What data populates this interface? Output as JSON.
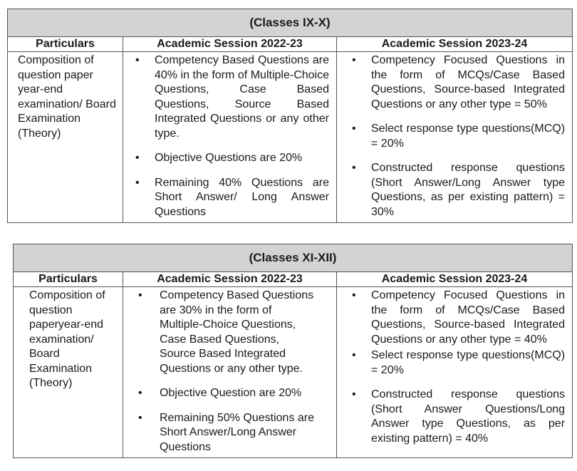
{
  "tables": [
    {
      "title": "(Classes IX-X)",
      "headers": [
        "Particulars",
        "Academic Session 2022-23",
        "Academic Session 2023-24"
      ],
      "particulars": "Composition of question paper year-end examination/ Board Examination (Theory)",
      "session_2022_23": [
        "Competency Based Questions are 40% in the form of Multiple-Choice Questions, Case Based Questions, Source Based Integrated Questions or any other type.",
        "Objective Questions are 20%",
        "Remaining 40% Questions are Short Answer/ Long Answer Questions"
      ],
      "session_2023_24": [
        "Competency Focused Questions in the form of MCQs/Case Based Questions, Source-based Integrated Questions or any other type = 50%",
        "Select response type questions(MCQ) = 20%",
        "Constructed response questions (Short Answer/Long Answer type Questions, as per existing pattern) = 30%"
      ]
    },
    {
      "title": "(Classes XI-XII)",
      "headers": [
        "Particulars",
        "Academic Session 2022-23",
        "Academic Session 2023-24"
      ],
      "particulars": "Composition of question paperyear-end examination/ Board Examination (Theory)",
      "session_2022_23": [
        "Competency Based Questions are 30% in the form of Multiple-Choice Questions, Case Based Questions, Source Based Integrated Questions or any other type.",
        "Objective Question are 20%",
        "Remaining 50% Questions are Short Answer/Long Answer Questions"
      ],
      "session_2023_24": [
        "Competency Focused Questions in the form of MCQs/Case Based Questions, Source-based Integrated Questions or any other type = 40%",
        "Select response type questions(MCQ) = 20%",
        "Constructed response questions (Short Answer Questions/Long Answer type Questions, as per existing pattern) = 40%"
      ]
    }
  ],
  "bullet": "•"
}
